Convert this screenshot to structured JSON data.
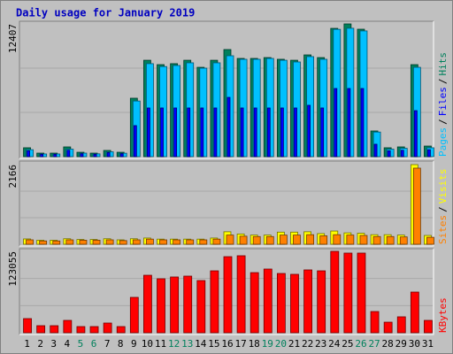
{
  "title": "Daily usage for January 2019",
  "chart_data": {
    "type": "bar",
    "categories": [
      "1",
      "2",
      "3",
      "4",
      "5",
      "6",
      "7",
      "8",
      "9",
      "10",
      "11",
      "12",
      "13",
      "14",
      "15",
      "16",
      "17",
      "18",
      "19",
      "20",
      "21",
      "22",
      "23",
      "24",
      "25",
      "26",
      "27",
      "28",
      "29",
      "30",
      "31"
    ],
    "category_colors": [
      "#000000",
      "#000000",
      "#000000",
      "#000000",
      "#00805c",
      "#00805c",
      "#000000",
      "#000000",
      "#000000",
      "#000000",
      "#000000",
      "#00805c",
      "#00805c",
      "#000000",
      "#000000",
      "#000000",
      "#000000",
      "#000000",
      "#00805c",
      "#00805c",
      "#000000",
      "#000000",
      "#000000",
      "#000000",
      "#000000",
      "#00805c",
      "#00805c",
      "#000000",
      "#000000",
      "#000000",
      "#000000"
    ],
    "legend_separator": "/",
    "grid": true,
    "panels": [
      {
        "ylim": [
          0,
          12407
        ],
        "yticks": [
          12407
        ],
        "series": [
          {
            "name": "Hits",
            "color": "#00805c",
            "values": [
              830,
              330,
              330,
              910,
              410,
              330,
              580,
              410,
              5460,
              9010,
              8600,
              8690,
              9010,
              8350,
              9010,
              10010,
              9180,
              9180,
              9260,
              9100,
              9010,
              9510,
              9260,
              11990,
              12407,
              11910,
              2400,
              830,
              910,
              8600,
              990
            ]
          },
          {
            "name": "Files",
            "color": "#0000ff",
            "values": [
              550,
              220,
              220,
              600,
              270,
              220,
              380,
              270,
              2900,
              4550,
              4550,
              4550,
              4550,
              4550,
              4550,
              5540,
              4550,
              4550,
              4550,
              4550,
              4550,
              4800,
              4550,
              6370,
              6370,
              6370,
              1160,
              550,
              600,
              4300,
              650
            ]
          },
          {
            "name": "Pages",
            "color": "#00c0ff",
            "values": [
              650,
              250,
              250,
              700,
              330,
              260,
              450,
              320,
              5200,
              8690,
              8420,
              8520,
              8770,
              8270,
              8770,
              9430,
              9100,
              9100,
              9180,
              9010,
              8850,
              9350,
              9100,
              11900,
              12000,
              11750,
              2300,
              700,
              780,
              8350,
              830
            ]
          }
        ]
      },
      {
        "ylim": [
          0,
          2166
        ],
        "yticks": [
          2166
        ],
        "series": [
          {
            "name": "Visits",
            "color": "#ffff00",
            "values": [
              145,
              110,
              110,
              150,
              130,
              130,
              150,
              120,
              150,
              170,
              140,
              140,
              140,
              140,
              170,
              340,
              280,
              250,
              250,
              330,
              330,
              340,
              290,
              360,
              310,
              300,
              260,
              260,
              250,
              2166,
              240
            ]
          },
          {
            "name": "Sites",
            "color": "#ff8000",
            "values": [
              120,
              90,
              90,
              120,
              110,
              110,
              120,
              100,
              120,
              140,
              120,
              120,
              120,
              120,
              140,
              250,
              220,
              210,
              210,
              250,
              250,
              260,
              230,
              260,
              250,
              240,
              210,
              210,
              200,
              2070,
              190
            ]
          }
        ]
      },
      {
        "ylim": [
          0,
          123055
        ],
        "yticks": [
          123055
        ],
        "series": [
          {
            "name": "KBytes",
            "color": "#ff0000",
            "values": [
              21400,
              10700,
              10700,
              18700,
              9360,
              9360,
              14700,
              9360,
              53500,
              86900,
              81600,
              84300,
              85600,
              78900,
              93600,
              115000,
              116400,
              90900,
              96300,
              89600,
              88300,
              95000,
              93600,
              123055,
              120400,
              120400,
              32100,
              16000,
              24100,
              61500,
              18700
            ]
          }
        ]
      }
    ]
  }
}
